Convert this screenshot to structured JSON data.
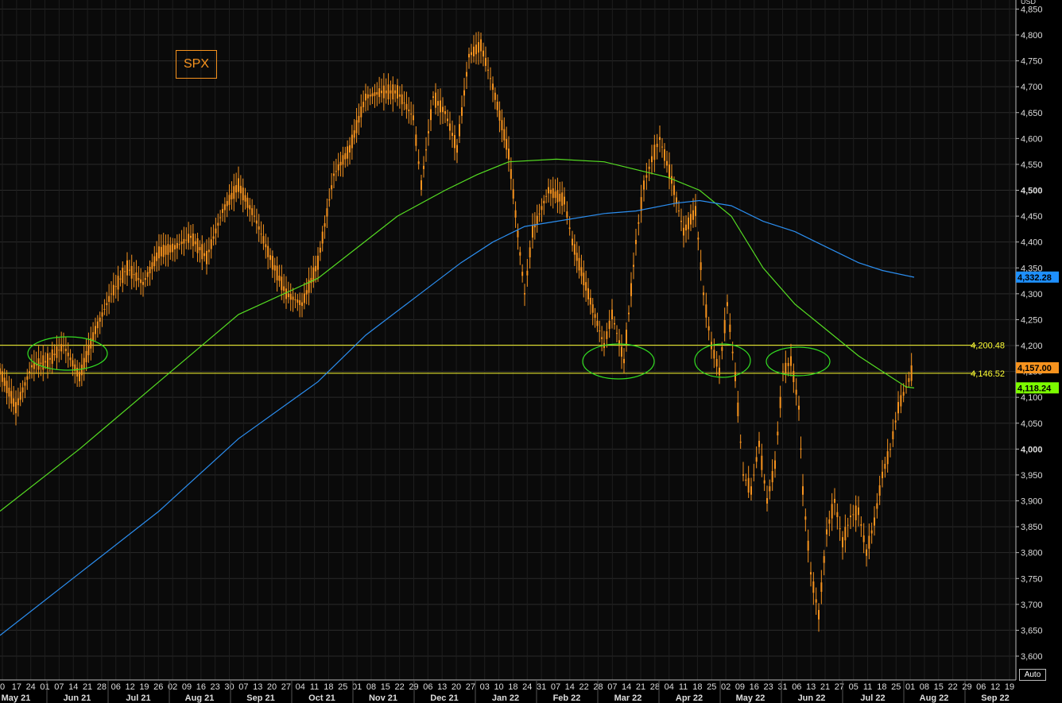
{
  "title": "SPX",
  "auto_label": "Auto",
  "chart_data": {
    "type": "candlestick",
    "currency": "USD",
    "ylim": [
      3550,
      4870
    ],
    "y_ticks": [
      3600,
      3650,
      3700,
      3750,
      3800,
      3850,
      3900,
      3950,
      4000,
      4050,
      4100,
      4150,
      4200,
      4250,
      4300,
      4350,
      4400,
      4450,
      4500,
      4550,
      4600,
      4650,
      4700,
      4750,
      4800,
      4850
    ],
    "y_tick_labels": [
      "3,600",
      "3,650",
      "3,700",
      "3,750",
      "3,800",
      "3,850",
      "3,900",
      "3,950",
      "4,000",
      "4,050",
      "4,100",
      "4,150",
      "4,200",
      "4,250",
      "4,300",
      "4,350",
      "4,400",
      "4,450",
      "4,500",
      "4,550",
      "4,600",
      "4,650",
      "4,700",
      "4,750",
      "4,800",
      "4,850"
    ],
    "y_bold_labels": [
      "4,000",
      "4,500"
    ],
    "x_day_labels": [
      "0",
      "17",
      "24",
      "01",
      "07",
      "14",
      "21",
      "28",
      "06",
      "12",
      "19",
      "26",
      "02",
      "09",
      "16",
      "23",
      "30",
      "07",
      "13",
      "20",
      "27",
      "04",
      "11",
      "18",
      "25",
      "01",
      "08",
      "15",
      "22",
      "29",
      "06",
      "13",
      "20",
      "27",
      "03",
      "10",
      "18",
      "24",
      "31",
      "07",
      "14",
      "22",
      "28",
      "07",
      "14",
      "21",
      "28",
      "04",
      "11",
      "18",
      "25",
      "02",
      "09",
      "16",
      "23",
      "31",
      "06",
      "13",
      "21",
      "27",
      "05",
      "11",
      "18",
      "25",
      "01",
      "08",
      "15",
      "22",
      "29",
      "06",
      "12",
      "19"
    ],
    "x_month_labels": [
      "May 21",
      "Jun 21",
      "Jul 21",
      "Aug 21",
      "Sep 21",
      "Oct 21",
      "Nov 21",
      "Dec 21",
      "Jan 22",
      "Feb 22",
      "Mar 22",
      "Apr 22",
      "May 22",
      "Jun 22",
      "Jul 22",
      "Aug 22",
      "Sep 22"
    ],
    "horizontal_lines": [
      {
        "value": 4200.48,
        "label": "4,200.48",
        "color": "#ffff33"
      },
      {
        "value": 4146.52,
        "label": "4,146.52",
        "color": "#ffff33"
      }
    ],
    "price_tags": [
      {
        "value": 4332.28,
        "label": "4,332.28",
        "color": "#1e90ff"
      },
      {
        "value": 4157.0,
        "label": "4,157.00",
        "color": "#f7931e"
      },
      {
        "value": 4118.24,
        "label": "4,118.24",
        "color": "#7cfc00"
      }
    ],
    "series": [
      {
        "kind": "price",
        "color": "#f7931e",
        "path": [
          [
            0,
            4150
          ],
          [
            20,
            4080
          ],
          [
            40,
            4160
          ],
          [
            60,
            4170
          ],
          [
            80,
            4200
          ],
          [
            100,
            4140
          ],
          [
            120,
            4230
          ],
          [
            140,
            4300
          ],
          [
            160,
            4350
          ],
          [
            180,
            4320
          ],
          [
            200,
            4380
          ],
          [
            220,
            4390
          ],
          [
            240,
            4410
          ],
          [
            260,
            4370
          ],
          [
            280,
            4460
          ],
          [
            300,
            4510
          ],
          [
            320,
            4450
          ],
          [
            340,
            4370
          ],
          [
            360,
            4300
          ],
          [
            380,
            4280
          ],
          [
            400,
            4360
          ],
          [
            420,
            4530
          ],
          [
            440,
            4580
          ],
          [
            460,
            4680
          ],
          [
            480,
            4690
          ],
          [
            500,
            4690
          ],
          [
            520,
            4640
          ],
          [
            530,
            4510
          ],
          [
            545,
            4680
          ],
          [
            560,
            4650
          ],
          [
            575,
            4580
          ],
          [
            590,
            4760
          ],
          [
            605,
            4780
          ],
          [
            620,
            4700
          ],
          [
            640,
            4570
          ],
          [
            660,
            4300
          ],
          [
            670,
            4420
          ],
          [
            690,
            4500
          ],
          [
            710,
            4480
          ],
          [
            720,
            4400
          ],
          [
            740,
            4300
          ],
          [
            760,
            4200
          ],
          [
            770,
            4260
          ],
          [
            785,
            4170
          ],
          [
            800,
            4400
          ],
          [
            810,
            4510
          ],
          [
            820,
            4560
          ],
          [
            830,
            4600
          ],
          [
            845,
            4520
          ],
          [
            860,
            4420
          ],
          [
            875,
            4460
          ],
          [
            885,
            4300
          ],
          [
            895,
            4200
          ],
          [
            905,
            4150
          ],
          [
            915,
            4280
          ],
          [
            925,
            4140
          ],
          [
            935,
            3950
          ],
          [
            945,
            3920
          ],
          [
            955,
            4010
          ],
          [
            965,
            3900
          ],
          [
            975,
            3970
          ],
          [
            985,
            4150
          ],
          [
            995,
            4170
          ],
          [
            1005,
            4080
          ],
          [
            1010,
            3920
          ],
          [
            1020,
            3760
          ],
          [
            1030,
            3680
          ],
          [
            1040,
            3840
          ],
          [
            1050,
            3900
          ],
          [
            1060,
            3820
          ],
          [
            1070,
            3870
          ],
          [
            1080,
            3880
          ],
          [
            1090,
            3800
          ],
          [
            1100,
            3860
          ],
          [
            1110,
            3950
          ],
          [
            1120,
            4000
          ],
          [
            1130,
            4080
          ],
          [
            1140,
            4120
          ],
          [
            1150,
            4160
          ]
        ]
      },
      {
        "kind": "ma-green",
        "color": "#55dd22",
        "path": [
          [
            0,
            3880
          ],
          [
            100,
            4000
          ],
          [
            200,
            4130
          ],
          [
            300,
            4260
          ],
          [
            400,
            4330
          ],
          [
            500,
            4450
          ],
          [
            560,
            4500
          ],
          [
            600,
            4530
          ],
          [
            640,
            4555
          ],
          [
            700,
            4560
          ],
          [
            760,
            4555
          ],
          [
            800,
            4540
          ],
          [
            840,
            4525
          ],
          [
            880,
            4500
          ],
          [
            920,
            4450
          ],
          [
            960,
            4350
          ],
          [
            1000,
            4280
          ],
          [
            1040,
            4230
          ],
          [
            1080,
            4180
          ],
          [
            1110,
            4150
          ],
          [
            1140,
            4120
          ],
          [
            1150,
            4118
          ]
        ]
      },
      {
        "kind": "ma-blue",
        "color": "#2b8ef0",
        "path": [
          [
            0,
            3640
          ],
          [
            100,
            3760
          ],
          [
            200,
            3880
          ],
          [
            300,
            4020
          ],
          [
            400,
            4130
          ],
          [
            460,
            4220
          ],
          [
            520,
            4290
          ],
          [
            580,
            4360
          ],
          [
            620,
            4400
          ],
          [
            660,
            4430
          ],
          [
            700,
            4440
          ],
          [
            760,
            4455
          ],
          [
            800,
            4460
          ],
          [
            850,
            4475
          ],
          [
            880,
            4480
          ],
          [
            920,
            4470
          ],
          [
            960,
            4440
          ],
          [
            1000,
            4420
          ],
          [
            1040,
            4390
          ],
          [
            1080,
            4360
          ],
          [
            1110,
            4345
          ],
          [
            1150,
            4332
          ]
        ]
      }
    ],
    "annotations": [
      {
        "type": "ellipse",
        "cx": 85,
        "cy": 445,
        "rx": 50,
        "ry": 21
      },
      {
        "type": "ellipse",
        "cx": 778,
        "cy": 455,
        "rx": 45,
        "ry": 22
      },
      {
        "type": "ellipse",
        "cx": 909,
        "cy": 454,
        "rx": 35,
        "ry": 21
      },
      {
        "type": "ellipse",
        "cx": 1004,
        "cy": 455,
        "rx": 40,
        "ry": 18
      }
    ]
  }
}
